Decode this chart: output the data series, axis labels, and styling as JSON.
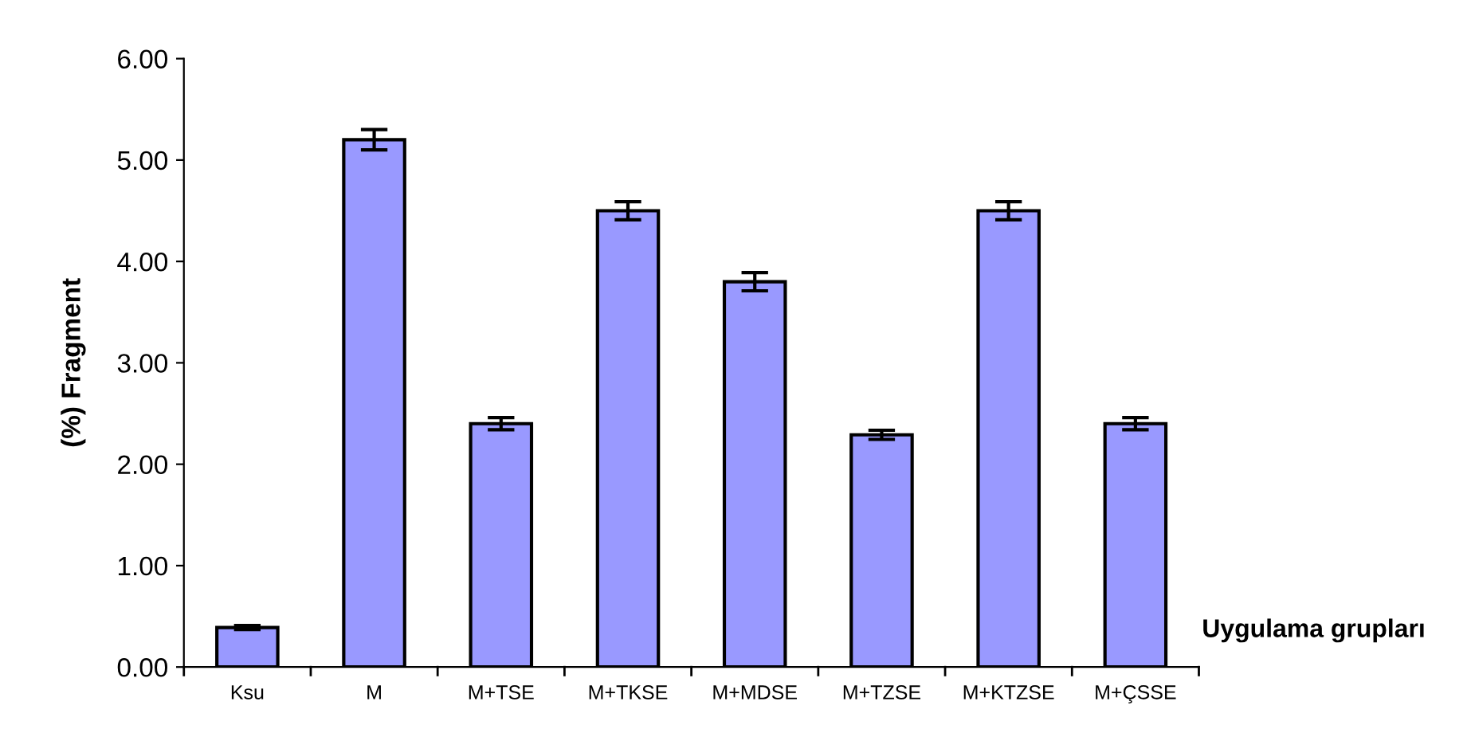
{
  "chart_data": {
    "type": "bar",
    "xlabel": "Uygulama grupları",
    "ylabel": "(%) Fragment",
    "categories": [
      "Ksu",
      "M",
      "M+TSE",
      "M+TKSE",
      "M+MDSE",
      "M+TZSE",
      "M+KTZSE",
      "M+ÇSSE"
    ],
    "values": [
      0.39,
      5.2,
      2.4,
      4.5,
      3.8,
      2.29,
      4.5,
      2.4
    ],
    "errors": [
      0.02,
      0.1,
      0.06,
      0.09,
      0.09,
      0.045,
      0.09,
      0.06
    ],
    "color": "#9999ff",
    "ylim": [
      0,
      6
    ],
    "yticks": [
      {
        "value": 0,
        "label": "0.00"
      },
      {
        "value": 1,
        "label": "1.00"
      },
      {
        "value": 2,
        "label": "2.00"
      },
      {
        "value": 3,
        "label": "3.00"
      },
      {
        "value": 4,
        "label": "4.00"
      },
      {
        "value": 5,
        "label": "5.00"
      },
      {
        "value": 6,
        "label": "6.00"
      }
    ],
    "grid": false,
    "legend": false
  }
}
